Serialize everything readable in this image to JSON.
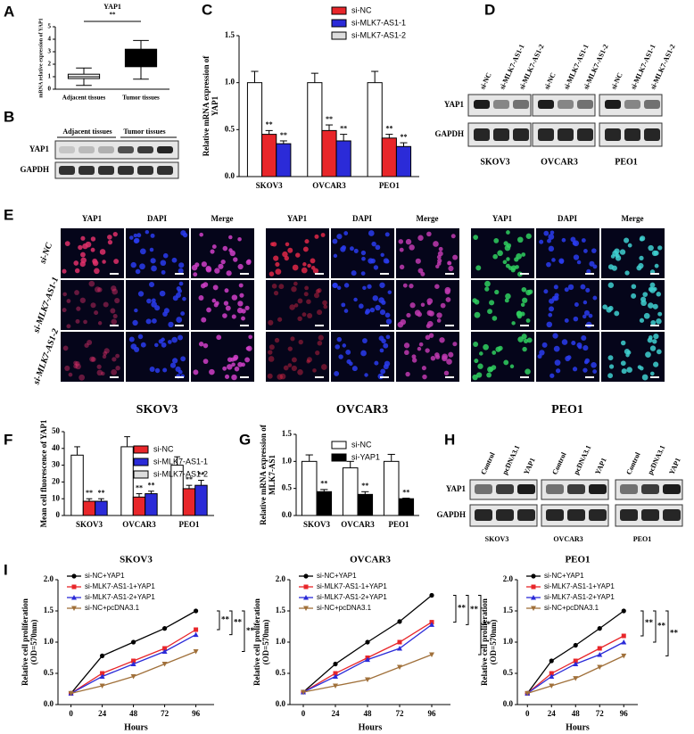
{
  "panel_letters": [
    "A",
    "B",
    "C",
    "D",
    "E",
    "F",
    "G",
    "H",
    "I"
  ],
  "chart_data": [
    {
      "type": "box",
      "title": "YAP1",
      "annotation": "**",
      "ylabel": [
        "mRNA relative expression of YAP1"
      ],
      "categories": [
        "Adjacent tissues",
        "Tumor tissues"
      ],
      "boxes": [
        {
          "min": 0.3,
          "q1": 0.85,
          "median": 1.0,
          "q3": 1.2,
          "max": 1.7
        },
        {
          "min": 0.8,
          "q1": 1.8,
          "median": 2.5,
          "q3": 3.2,
          "max": 3.9
        }
      ],
      "colors": [
        "#ffffff",
        "#000000"
      ],
      "ylim": [
        0,
        5
      ],
      "yticks": [
        0,
        1,
        2,
        3,
        4,
        5
      ]
    },
    {
      "type": "bar",
      "annotation": "**",
      "ylabel": [
        "Relative mRNA expression of",
        "YAP1"
      ],
      "categories": [
        "SKOV3",
        "OVCAR3",
        "PEO1"
      ],
      "series": [
        {
          "name": "si-NC",
          "color": "#ffffff",
          "values": [
            1.0,
            1.0,
            1.0
          ],
          "errors": [
            0.12,
            0.1,
            0.12
          ]
        },
        {
          "name": "si-MLK7-AS1-1",
          "color": "#e8262a",
          "values": [
            0.45,
            0.49,
            0.41
          ],
          "errors": [
            0.04,
            0.06,
            0.04
          ]
        },
        {
          "name": "si-MLK7-AS1-2",
          "color": "#2b2bd8",
          "values": [
            0.35,
            0.38,
            0.32
          ],
          "errors": [
            0.03,
            0.07,
            0.04
          ]
        }
      ],
      "legend_colors": [
        "#e8262a",
        "#2b2bd8",
        "#dddddd"
      ],
      "ylim": [
        0,
        1.5
      ],
      "yticks": [
        {
          "value": 0,
          "label": "0.0"
        },
        {
          "value": 0.5,
          "label": "0.5"
        },
        {
          "value": 1,
          "label": "1.0"
        },
        {
          "value": 1.5,
          "label": "1.5"
        }
      ]
    },
    {
      "type": "bar",
      "annotation": "**",
      "ylabel": [
        "Mean cell fluorescence of YAP1"
      ],
      "categories": [
        "SKOV3",
        "OVCAR3",
        "PEO1"
      ],
      "series": [
        {
          "name": "si-NC",
          "color": "#ffffff",
          "values": [
            36,
            41,
            30
          ],
          "errors": [
            5,
            6,
            5
          ]
        },
        {
          "name": "si-MLK7-AS1-1",
          "color": "#e8262a",
          "values": [
            8.5,
            11,
            16
          ],
          "errors": [
            1.5,
            2,
            2
          ]
        },
        {
          "name": "si-MLK7-AS1-2",
          "color": "#2b2bd8",
          "values": [
            8.5,
            13,
            18
          ],
          "errors": [
            1.5,
            1.5,
            3
          ]
        }
      ],
      "legend_colors": [
        "#e8262a",
        "#2b2bd8",
        "#dddddd"
      ],
      "ylim": [
        0,
        50
      ],
      "yticks": [
        0,
        10,
        20,
        30,
        40,
        50
      ]
    },
    {
      "type": "bar",
      "annotation": "**",
      "ylabel": [
        "Relative mRNA expression of",
        "MLK7-AS1"
      ],
      "categories": [
        "SKOV3",
        "OVCAR3",
        "PEO1"
      ],
      "series": [
        {
          "name": "si-NC",
          "color": "#ffffff",
          "values": [
            1.0,
            0.88,
            1.0
          ],
          "errors": [
            0.12,
            0.12,
            0.13
          ]
        },
        {
          "name": "si-YAP1",
          "color": "#000000",
          "values": [
            0.44,
            0.39,
            0.31
          ],
          "errors": [
            0.04,
            0.05,
            0.01
          ]
        }
      ],
      "ylim": [
        0,
        1.5
      ],
      "yticks": [
        {
          "value": 0,
          "label": "0.0"
        },
        {
          "value": 0.5,
          "label": "0.5"
        },
        {
          "value": 1,
          "label": "1.0"
        },
        {
          "value": 1.5,
          "label": "1.5"
        }
      ]
    },
    {
      "type": "line",
      "title": "SKOV3",
      "annotation": "**",
      "xlabel": "Hours",
      "ylabel": [
        "Relative cell proliferation",
        "(OD=570nm)"
      ],
      "x": [
        0,
        24,
        48,
        72,
        96
      ],
      "xlim": [
        -10,
        110
      ],
      "xticks": [
        0,
        24,
        48,
        72,
        96
      ],
      "ylim": [
        0,
        2
      ],
      "yticks": [
        {
          "value": 0,
          "label": "0.0"
        },
        {
          "value": 0.5,
          "label": "0.5"
        },
        {
          "value": 1,
          "label": "1.0"
        },
        {
          "value": 1.5,
          "label": "1.5"
        },
        {
          "value": 2,
          "label": "2.0"
        }
      ],
      "series": [
        {
          "name": "si-NC+YAP1",
          "color": "#000000",
          "marker": "circle",
          "values": [
            0.18,
            0.78,
            1.0,
            1.22,
            1.5
          ]
        },
        {
          "name": "si-MLK7-AS1-1+YAP1",
          "color": "#e8262a",
          "marker": "square",
          "values": [
            0.18,
            0.5,
            0.7,
            0.9,
            1.2
          ]
        },
        {
          "name": "si-MLK7-AS1-2+YAP1",
          "color": "#2b2bd8",
          "marker": "triangle",
          "values": [
            0.18,
            0.45,
            0.65,
            0.85,
            1.12
          ]
        },
        {
          "name": "si-NC+pcDNA3.1",
          "color": "#a0703a",
          "marker": "triangle-down",
          "values": [
            0.18,
            0.3,
            0.45,
            0.65,
            0.85
          ]
        }
      ]
    },
    {
      "type": "line",
      "title": "OVCAR3",
      "annotation": "**",
      "xlabel": "Hours",
      "ylabel": [
        "Relative cell proliferation",
        "(OD=570nm)"
      ],
      "x": [
        0,
        24,
        48,
        72,
        96
      ],
      "xlim": [
        -10,
        110
      ],
      "xticks": [
        0,
        24,
        48,
        72,
        96
      ],
      "ylim": [
        0,
        2
      ],
      "yticks": [
        {
          "value": 0,
          "label": "0.0"
        },
        {
          "value": 0.5,
          "label": "0.5"
        },
        {
          "value": 1,
          "label": "1.0"
        },
        {
          "value": 1.5,
          "label": "1.5"
        },
        {
          "value": 2,
          "label": "2.0"
        }
      ],
      "series": [
        {
          "name": "si-NC+YAP1",
          "color": "#000000",
          "marker": "circle",
          "values": [
            0.2,
            0.65,
            1.0,
            1.33,
            1.75
          ]
        },
        {
          "name": "si-MLK7-AS1-1+YAP1",
          "color": "#e8262a",
          "marker": "square",
          "values": [
            0.2,
            0.5,
            0.75,
            1.0,
            1.32
          ]
        },
        {
          "name": "si-MLK7-AS1-2+YAP1",
          "color": "#2b2bd8",
          "marker": "triangle",
          "values": [
            0.2,
            0.45,
            0.72,
            0.9,
            1.28
          ]
        },
        {
          "name": "si-NC+pcDNA3.1",
          "color": "#a0703a",
          "marker": "triangle-down",
          "values": [
            0.2,
            0.3,
            0.4,
            0.6,
            0.8
          ]
        }
      ]
    },
    {
      "type": "line",
      "title": "PEO1",
      "annotation": "**",
      "xlabel": "Hours",
      "ylabel": [
        "Relative cell proliferation",
        "(OD=570nm)"
      ],
      "x": [
        0,
        24,
        48,
        72,
        96
      ],
      "xlim": [
        -10,
        110
      ],
      "xticks": [
        0,
        24,
        48,
        72,
        96
      ],
      "ylim": [
        0,
        2
      ],
      "yticks": [
        {
          "value": 0,
          "label": "0.0"
        },
        {
          "value": 0.5,
          "label": "0.5"
        },
        {
          "value": 1,
          "label": "1.0"
        },
        {
          "value": 1.5,
          "label": "1.5"
        },
        {
          "value": 2,
          "label": "2.0"
        }
      ],
      "series": [
        {
          "name": "si-NC+YAP1",
          "color": "#000000",
          "marker": "circle",
          "values": [
            0.18,
            0.7,
            0.95,
            1.22,
            1.5
          ]
        },
        {
          "name": "si-MLK7-AS1-1+YAP1",
          "color": "#e8262a",
          "marker": "square",
          "values": [
            0.18,
            0.5,
            0.7,
            0.9,
            1.1
          ]
        },
        {
          "name": "si-MLK7-AS1-2+YAP1",
          "color": "#2b2bd8",
          "marker": "triangle",
          "values": [
            0.18,
            0.45,
            0.65,
            0.8,
            1.0
          ]
        },
        {
          "name": "si-NC+pcDNA3.1",
          "color": "#a0703a",
          "marker": "triangle-down",
          "values": [
            0.18,
            0.3,
            0.42,
            0.6,
            0.78
          ]
        }
      ]
    }
  ],
  "blot_b": {
    "columns": [
      "Adjacent tissues",
      "Tumor tissues"
    ],
    "rows": [
      "YAP1",
      "GAPDH"
    ]
  },
  "blot_d": {
    "lanes": [
      "si-NC",
      "si-MLK7-AS1-1",
      "si-MLK7-AS1-2"
    ],
    "rows": [
      "YAP1",
      "GAPDH"
    ],
    "cell_lines": [
      "SKOV3",
      "OVCAR3",
      "PEO1"
    ]
  },
  "panel_e": {
    "channels": [
      "YAP1",
      "DAPI",
      "Merge"
    ],
    "rows": [
      "si-NC",
      "si-MLK7-AS1-1",
      "si-MLK7-AS1-2"
    ],
    "cell_lines": [
      "SKOV3",
      "OVCAR3",
      "PEO1"
    ]
  },
  "blot_h": {
    "lanes": [
      "Control",
      "pcDNA3.1",
      "YAP1"
    ],
    "rows": [
      "YAP1",
      "GAPDH"
    ],
    "cell_lines": [
      "SKOV3",
      "OVCAR3",
      "PEO1"
    ]
  }
}
